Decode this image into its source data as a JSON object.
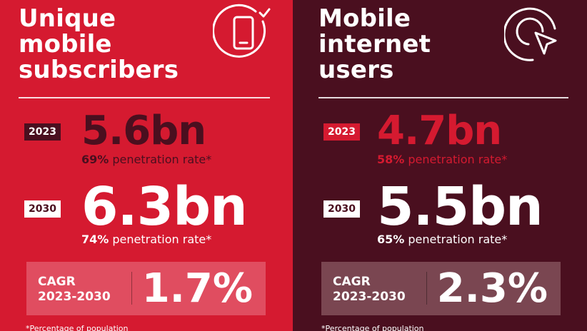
{
  "left": {
    "title_lines": [
      "Unique",
      "mobile",
      "subscribers"
    ],
    "rows": [
      {
        "year": "2023",
        "value": "5.6bn",
        "pct": "69%",
        "pen_text": " penetration rate*"
      },
      {
        "year": "2030",
        "value": "6.3bn",
        "pct": "74%",
        "pen_text": " penetration rate*"
      }
    ],
    "cagr": {
      "label_line1": "CAGR",
      "label_line2": "2023-2030",
      "value": "1.7%"
    },
    "footnote": "*Percentage of population",
    "icon": "mobile-phone-check-icon"
  },
  "right": {
    "title_lines": [
      "Mobile",
      "internet",
      "users"
    ],
    "rows": [
      {
        "year": "2023",
        "value": "4.7bn",
        "pct": "58%",
        "pen_text": " penetration rate*"
      },
      {
        "year": "2030",
        "value": "5.5bn",
        "pct": "65%",
        "pen_text": " penetration rate*"
      }
    ],
    "cagr": {
      "label_line1": "CAGR",
      "label_line2": "2023-2030",
      "value": "2.3%"
    },
    "footnote": "*Percentage of population",
    "icon": "cursor-click-icon"
  },
  "colors": {
    "left_bg": "#d51a30",
    "right_bg": "#4a0f1f",
    "dark_red": "#4a0f1f",
    "bright_red": "#d51a30"
  }
}
